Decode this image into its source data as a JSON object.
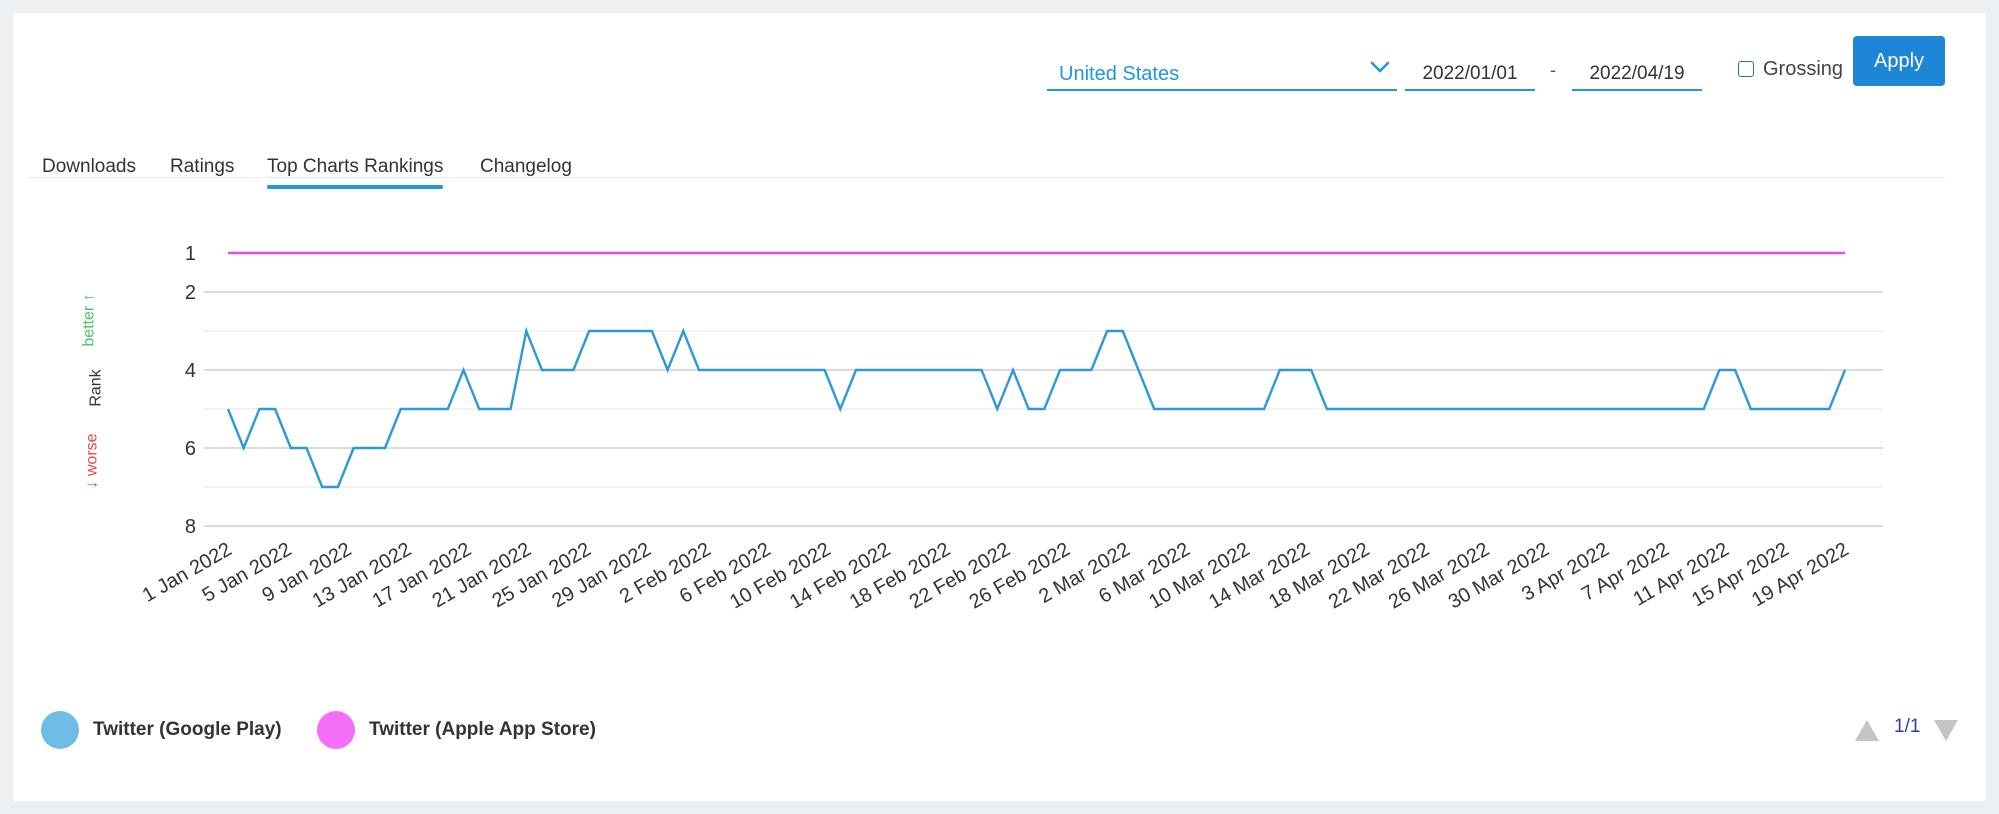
{
  "controls": {
    "country": "United States",
    "date_from": "2022/01/01",
    "date_separator": "-",
    "date_to": "2022/04/19",
    "grossing_label": "Grossing",
    "apply_label": "Apply"
  },
  "tabs": [
    {
      "label": "Downloads"
    },
    {
      "label": "Ratings"
    },
    {
      "label": "Top Charts Rankings"
    },
    {
      "label": "Changelog"
    }
  ],
  "y_axis": {
    "better": "better ↑",
    "rank": "Rank",
    "worse": "↓ worse"
  },
  "pager": "1/1",
  "colors": {
    "google_play": "#2c9ad6",
    "apple": "#e34fe6",
    "accent": "#1f97de",
    "better": "#4bc26b",
    "worse": "#e5484d"
  },
  "chart_data": {
    "type": "line",
    "x_start": "2022-01-01",
    "x_end": "2022-04-19",
    "ylabel": "Rank",
    "y_reversed": true,
    "yticks": [
      1,
      2,
      4,
      6,
      8
    ],
    "grid_lines": [
      2,
      3,
      4,
      5,
      6,
      7,
      8
    ],
    "xticks": [
      "1 Jan 2022",
      "5 Jan 2022",
      "9 Jan 2022",
      "13 Jan 2022",
      "17 Jan 2022",
      "21 Jan 2022",
      "25 Jan 2022",
      "29 Jan 2022",
      "2 Feb 2022",
      "6 Feb 2022",
      "10 Feb 2022",
      "14 Feb 2022",
      "18 Feb 2022",
      "22 Feb 2022",
      "26 Feb 2022",
      "2 Mar 2022",
      "6 Mar 2022",
      "10 Mar 2022",
      "14 Mar 2022",
      "18 Mar 2022",
      "22 Mar 2022",
      "26 Mar 2022",
      "30 Mar 2022",
      "3 Apr 2022",
      "7 Apr 2022",
      "11 Apr 2022",
      "15 Apr 2022",
      "19 Apr 2022"
    ],
    "series": [
      {
        "name": "Twitter (Google Play)",
        "color": "#2c9ad6",
        "values": [
          5,
          6,
          5,
          5,
          6,
          6,
          7,
          7,
          6,
          6,
          6,
          5,
          5,
          5,
          5,
          4,
          5,
          5,
          5,
          3,
          4,
          4,
          4,
          3,
          3,
          3,
          3,
          3,
          4,
          3,
          4,
          4,
          4,
          4,
          4,
          4,
          4,
          4,
          4,
          5,
          4,
          4,
          4,
          4,
          4,
          4,
          4,
          4,
          4,
          5,
          4,
          5,
          5,
          4,
          4,
          4,
          3,
          3,
          4,
          5,
          5,
          5,
          5,
          5,
          5,
          5,
          5,
          4,
          4,
          4,
          5,
          5,
          5,
          5,
          5,
          5,
          5,
          5,
          5,
          5,
          5,
          5,
          5,
          5,
          5,
          5,
          5,
          5,
          5,
          5,
          5,
          5,
          5,
          5,
          5,
          4,
          4,
          5,
          5,
          5,
          5,
          5,
          5,
          4
        ]
      },
      {
        "name": "Twitter (Apple App Store)",
        "color": "#e34fe6",
        "values": [
          1,
          1,
          1,
          1,
          1,
          1,
          1,
          1,
          1,
          1,
          1,
          1,
          1,
          1,
          1,
          1,
          1,
          1,
          1,
          1,
          1,
          1,
          1,
          1,
          1,
          1,
          1,
          1,
          1,
          1,
          1,
          1,
          1,
          1,
          1,
          1,
          1,
          1,
          1,
          1,
          1,
          1,
          1,
          1,
          1,
          1,
          1,
          1,
          1,
          1,
          1,
          1,
          1,
          1,
          1,
          1,
          1,
          1,
          1,
          1,
          1,
          1,
          1,
          1,
          1,
          1,
          1,
          1,
          1,
          1,
          1,
          1,
          1,
          1,
          1,
          1,
          1,
          1,
          1,
          1,
          1,
          1,
          1,
          1,
          1,
          1,
          1,
          1,
          1,
          1,
          1,
          1,
          1,
          1,
          1,
          1,
          1,
          1,
          1,
          1,
          1,
          1,
          1,
          1,
          1,
          1,
          1,
          1
        ]
      }
    ],
    "legend": [
      "Twitter (Google Play)",
      "Twitter (Apple App Store)"
    ],
    "legend_position": "bottom-left"
  }
}
